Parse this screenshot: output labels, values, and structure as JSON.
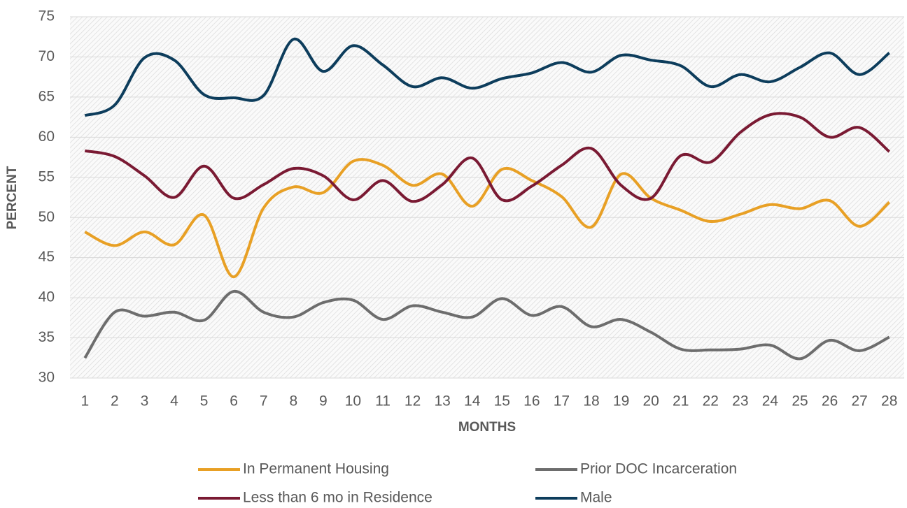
{
  "chart_data": {
    "type": "line",
    "x_label": "MONTHS",
    "y_label": "PERCENT",
    "categories": [
      "1",
      "2",
      "3",
      "4",
      "5",
      "6",
      "7",
      "8",
      "9",
      "10",
      "11",
      "12",
      "13",
      "14",
      "15",
      "16",
      "17",
      "18",
      "19",
      "20",
      "21",
      "22",
      "23",
      "24",
      "25",
      "26",
      "27",
      "28"
    ],
    "series": [
      {
        "name": "In Permanent Housing",
        "color": "#e8a025",
        "values": [
          48.2,
          46.5,
          48.2,
          46.6,
          50.3,
          42.6,
          51.2,
          53.8,
          53.1,
          57,
          56.5,
          54,
          55.4,
          51.4,
          56,
          54.6,
          52.6,
          48.8,
          55.4,
          52.4,
          50.9,
          49.5,
          50.4,
          51.6,
          51.1,
          52.1,
          48.9,
          51.9
        ]
      },
      {
        "name": "Prior DOC Incarceration",
        "color": "#6d6d6d",
        "values": [
          32.5,
          38.2,
          37.7,
          38.2,
          37.2,
          40.8,
          38.2,
          37.6,
          39.4,
          39.7,
          37.3,
          39,
          38.2,
          37.6,
          39.9,
          37.8,
          38.9,
          36.4,
          37.3,
          35.7,
          33.6,
          33.5,
          33.6,
          34.1,
          32.4,
          34.7,
          33.4,
          35.1
        ]
      },
      {
        "name": "Less than 6 mo in Residence",
        "color": "#7a1a33",
        "values": [
          58.3,
          57.6,
          55.2,
          52.5,
          56.4,
          52.4,
          54.1,
          56.1,
          55.2,
          52.2,
          54.6,
          52,
          54.1,
          57.4,
          52.2,
          53.9,
          56.5,
          58.6,
          54,
          52.4,
          57.7,
          56.9,
          60.6,
          62.8,
          62.5,
          60,
          61.2,
          58.2
        ]
      },
      {
        "name": "Male",
        "color": "#0d3d5c",
        "values": [
          62.7,
          64,
          69.9,
          69.6,
          65.3,
          64.9,
          65.2,
          72.2,
          68.2,
          71.4,
          69,
          66.3,
          67.4,
          66.1,
          67.3,
          68,
          69.3,
          68.1,
          70.2,
          69.6,
          68.9,
          66.3,
          67.8,
          66.9,
          68.7,
          70.5,
          67.8,
          70.5
        ]
      }
    ],
    "ylim": [
      30,
      75
    ],
    "yticks": [
      30,
      35,
      40,
      45,
      50,
      55,
      60,
      65,
      70,
      75
    ],
    "grid": true,
    "legend": "bottom"
  }
}
